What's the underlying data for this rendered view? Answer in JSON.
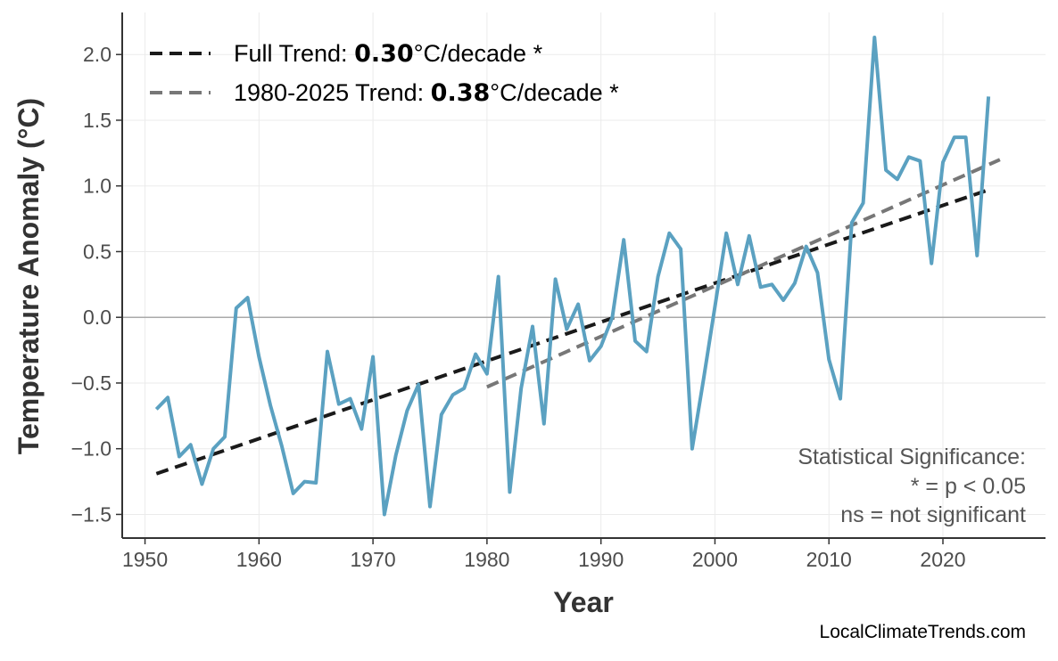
{
  "chart_data": {
    "type": "line",
    "title": "",
    "xlabel": "Year",
    "ylabel": "Temperature Anomaly (°C)",
    "xlim": [
      1948,
      2029
    ],
    "ylim": [
      -1.68,
      2.32
    ],
    "xticks": [
      1950,
      1960,
      1970,
      1980,
      1990,
      2000,
      2010,
      2020
    ],
    "yticks": [
      -1.5,
      -1.0,
      -0.5,
      0.0,
      0.5,
      1.0,
      1.5,
      2.0
    ],
    "ytick_labels": [
      "−1.5",
      "−1.0",
      "−0.5",
      "0.0",
      "0.5",
      "1.0",
      "1.5",
      "2.0"
    ],
    "grid": true,
    "zero_line": true,
    "legend_placement": "top-left",
    "series": [
      {
        "type": "line",
        "color": "#5ba1c1",
        "x": [
          1951,
          1952,
          1953,
          1954,
          1955,
          1956,
          1957,
          1958,
          1959,
          1960,
          1961,
          1962,
          1963,
          1964,
          1965,
          1966,
          1967,
          1968,
          1969,
          1970,
          1971,
          1972,
          1973,
          1974,
          1975,
          1976,
          1977,
          1978,
          1979,
          1980,
          1981,
          1982,
          1983,
          1984,
          1985,
          1986,
          1987,
          1988,
          1989,
          1990,
          1991,
          1992,
          1993,
          1994,
          1995,
          1996,
          1997,
          1998,
          1999,
          2000,
          2001,
          2002,
          2003,
          2004,
          2005,
          2006,
          2007,
          2008,
          2009,
          2010,
          2011,
          2012,
          2013,
          2014,
          2015,
          2016,
          2017,
          2018,
          2019,
          2020,
          2021,
          2022,
          2023,
          2024
        ],
        "y": [
          -0.7,
          -0.61,
          -1.06,
          -0.97,
          -1.27,
          -1.0,
          -0.91,
          0.07,
          0.15,
          -0.3,
          -0.67,
          -0.98,
          -1.34,
          -1.25,
          -1.26,
          -0.26,
          -0.66,
          -0.62,
          -0.85,
          -0.3,
          -1.5,
          -1.05,
          -0.71,
          -0.51,
          -1.44,
          -0.74,
          -0.59,
          -0.54,
          -0.28,
          -0.43,
          0.31,
          -1.33,
          -0.54,
          -0.07,
          -0.81,
          0.29,
          -0.09,
          0.1,
          -0.33,
          -0.22,
          0.0,
          0.59,
          -0.18,
          -0.26,
          0.31,
          0.64,
          0.52,
          -1.0,
          -0.47,
          0.08,
          0.64,
          0.25,
          0.62,
          0.23,
          0.25,
          0.13,
          0.26,
          0.54,
          0.34,
          -0.32,
          -0.62,
          0.72,
          0.87,
          2.13,
          1.12,
          1.05,
          1.22,
          1.19,
          0.41,
          1.18,
          1.37,
          1.37,
          0.47,
          1.68
        ]
      }
    ],
    "trends": [
      {
        "label_prefix": "Full Trend: ",
        "value": "0.30",
        "label_suffix": "°C/decade *",
        "color": "#1a1a1a",
        "x": [
          1951,
          2024
        ],
        "y": [
          -1.19,
          0.97
        ]
      },
      {
        "label_prefix": "1980-2025 Trend: ",
        "value": "0.38",
        "label_suffix": "°C/decade *",
        "color": "#777777",
        "x": [
          1980,
          2025
        ],
        "y": [
          -0.53,
          1.2
        ]
      }
    ],
    "annotations": {
      "significance": [
        "Statistical Significance:",
        "* = p < 0.05",
        "ns = not significant"
      ],
      "credit": "LocalClimateTrends.com"
    }
  }
}
